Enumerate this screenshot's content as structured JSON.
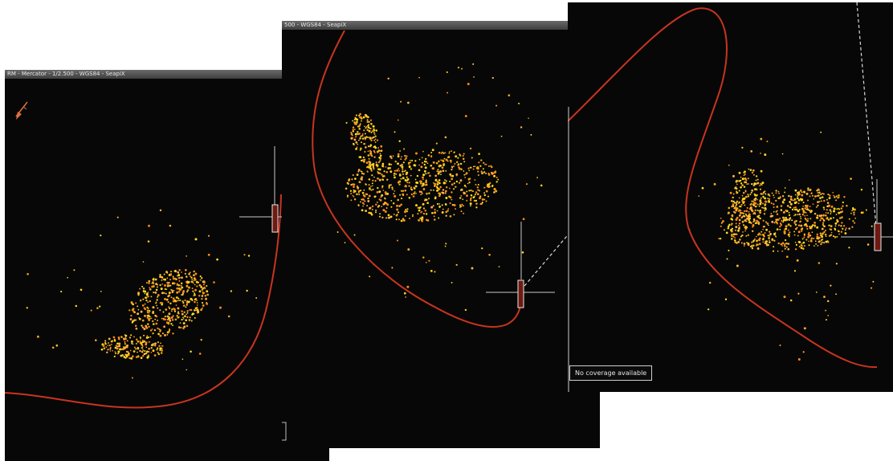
{
  "panels": [
    {
      "title": "RM - Mercator - 1/2.500 - WGS84 - SeapiX",
      "accent": "#c9341f",
      "sounding_colors": [
        "#ffe21f",
        "#ffd21a",
        "#f0a417",
        "#ff8c1a",
        "#ffb347"
      ]
    },
    {
      "title": "500 - WGS84 - SeapiX",
      "accent": "#c9341f",
      "sounding_colors": [
        "#ffe21f",
        "#ffd21a",
        "#f0a417",
        "#ff8c1a",
        "#ffb347"
      ]
    },
    {
      "title": "",
      "accent": "#c9341f",
      "sounding_colors": [
        "#ffe21f",
        "#ffd21a",
        "#f0a417",
        "#ff8c1a",
        "#ffb347"
      ],
      "status": "No coverage available"
    }
  ],
  "icons": [
    "north-arrow-icon",
    "vessel-icon",
    "crosshair-icon"
  ]
}
